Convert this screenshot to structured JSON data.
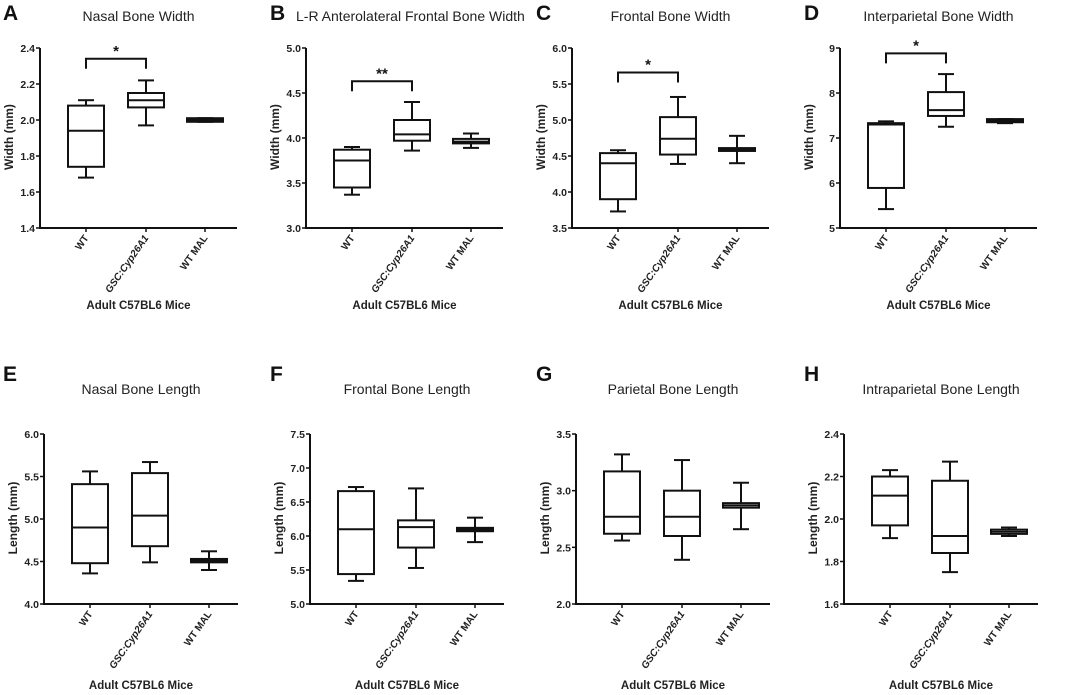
{
  "chart_data": [
    {
      "letter": "A",
      "type": "box",
      "title": "Nasal Bone Width",
      "ylabel": "Width (mm)",
      "xlabel": "Adult C57BL6 Mice",
      "ylim": [
        1.4,
        2.4
      ],
      "yticks": [
        1.4,
        1.6,
        1.8,
        2.0,
        2.2,
        2.4
      ],
      "ytick_labels": [
        "1.4",
        "1.6",
        "1.8",
        "2.0",
        "2.2",
        "2.4"
      ],
      "categories": [
        "WT",
        "GSC:Cyp26A1",
        "WT MAL"
      ],
      "boxes": [
        {
          "min": 1.68,
          "q1": 1.74,
          "median": 1.94,
          "q3": 2.08,
          "max": 2.11
        },
        {
          "min": 1.97,
          "q1": 2.07,
          "median": 2.11,
          "q3": 2.15,
          "max": 2.22
        },
        {
          "min": 1.99,
          "q1": 1.99,
          "median": 2.0,
          "q3": 2.01,
          "max": 2.01
        }
      ],
      "significance": [
        {
          "from": 0,
          "to": 1,
          "label": "*",
          "y": 2.34
        }
      ]
    },
    {
      "letter": "B",
      "type": "box",
      "title": "L-R Anterolateral Frontal Bone Width",
      "ylabel": "Width (mm)",
      "xlabel": "Adult C57BL6 Mice",
      "ylim": [
        3.0,
        5.0
      ],
      "yticks": [
        3.0,
        3.5,
        4.0,
        4.5,
        5.0
      ],
      "ytick_labels": [
        "3.0",
        "3.5",
        "4.0",
        "4.5",
        "5.0"
      ],
      "categories": [
        "WT",
        "GSC:Cyp26A1",
        "WT MAL"
      ],
      "boxes": [
        {
          "min": 3.37,
          "q1": 3.45,
          "median": 3.75,
          "q3": 3.87,
          "max": 3.9
        },
        {
          "min": 3.86,
          "q1": 3.97,
          "median": 4.04,
          "q3": 4.2,
          "max": 4.4
        },
        {
          "min": 3.89,
          "q1": 3.94,
          "median": 3.96,
          "q3": 3.99,
          "max": 4.05
        }
      ],
      "significance": [
        {
          "from": 0,
          "to": 1,
          "label": "**",
          "y": 4.63
        }
      ]
    },
    {
      "letter": "C",
      "type": "box",
      "title": "Frontal Bone Width",
      "ylabel": "Width (mm)",
      "xlabel": "Adult C57BL6 Mice",
      "ylim": [
        3.5,
        6.0
      ],
      "yticks": [
        3.5,
        4.0,
        4.5,
        5.0,
        5.5,
        6.0
      ],
      "ytick_labels": [
        "3.5",
        "4.0",
        "4.5",
        "5.0",
        "5.5",
        "6.0"
      ],
      "categories": [
        "WT",
        "GSC:Cyp26A1",
        "WT MAL"
      ],
      "boxes": [
        {
          "min": 3.73,
          "q1": 3.9,
          "median": 4.4,
          "q3": 4.54,
          "max": 4.58
        },
        {
          "min": 4.39,
          "q1": 4.52,
          "median": 4.74,
          "q3": 5.04,
          "max": 5.32
        },
        {
          "min": 4.4,
          "q1": 4.57,
          "median": 4.59,
          "q3": 4.61,
          "max": 4.78
        }
      ],
      "significance": [
        {
          "from": 0,
          "to": 1,
          "label": "*",
          "y": 5.66
        }
      ]
    },
    {
      "letter": "D",
      "type": "box",
      "title": "Interparietal Bone Width",
      "ylabel": "Width (mm)",
      "xlabel": "Adult C57BL6 Mice",
      "ylim": [
        5,
        9
      ],
      "yticks": [
        5,
        6,
        7,
        8,
        9
      ],
      "ytick_labels": [
        "5",
        "6",
        "7",
        "8",
        "9"
      ],
      "categories": [
        "WT",
        "GSC:Cyp26A1",
        "WT MAL"
      ],
      "boxes": [
        {
          "min": 5.42,
          "q1": 5.89,
          "median": 7.3,
          "q3": 7.33,
          "max": 7.37
        },
        {
          "min": 7.25,
          "q1": 7.49,
          "median": 7.62,
          "q3": 8.02,
          "max": 8.42
        },
        {
          "min": 7.33,
          "q1": 7.35,
          "median": 7.38,
          "q3": 7.42,
          "max": 7.42
        }
      ],
      "significance": [
        {
          "from": 0,
          "to": 1,
          "label": "*",
          "y": 8.88
        }
      ]
    },
    {
      "letter": "E",
      "type": "box",
      "title": "Nasal Bone Length",
      "ylabel": "Length (mm)",
      "xlabel": "Adult C57BL6 Mice",
      "ylim": [
        4.0,
        6.0
      ],
      "yticks": [
        4.0,
        4.5,
        5.0,
        5.5,
        6.0
      ],
      "ytick_labels": [
        "4.0",
        "4.5",
        "5.0",
        "5.5",
        "6.0"
      ],
      "categories": [
        "WT",
        "GSC:Cyp26A1",
        "WT MAL"
      ],
      "boxes": [
        {
          "min": 4.36,
          "q1": 4.48,
          "median": 4.9,
          "q3": 5.41,
          "max": 5.56
        },
        {
          "min": 4.49,
          "q1": 4.68,
          "median": 5.04,
          "q3": 5.54,
          "max": 5.67
        },
        {
          "min": 4.4,
          "q1": 4.49,
          "median": 4.51,
          "q3": 4.53,
          "max": 4.62
        }
      ],
      "significance": []
    },
    {
      "letter": "F",
      "type": "box",
      "title": "Frontal Bone Length",
      "ylabel": "Length (mm)",
      "xlabel": "Adult C57BL6 Mice",
      "ylim": [
        5.0,
        7.5
      ],
      "yticks": [
        5.0,
        5.5,
        6.0,
        6.5,
        7.0,
        7.5
      ],
      "ytick_labels": [
        "5.0",
        "5.5",
        "6.0",
        "6.5",
        "7.0",
        "7.5"
      ],
      "categories": [
        "WT",
        "GSC:Cyp26A1",
        "WT MAL"
      ],
      "boxes": [
        {
          "min": 5.34,
          "q1": 5.44,
          "median": 6.1,
          "q3": 6.66,
          "max": 6.72
        },
        {
          "min": 5.53,
          "q1": 5.83,
          "median": 6.13,
          "q3": 6.23,
          "max": 6.7
        },
        {
          "min": 5.91,
          "q1": 6.07,
          "median": 6.09,
          "q3": 6.12,
          "max": 6.27
        }
      ],
      "significance": []
    },
    {
      "letter": "G",
      "type": "box",
      "title": "Parietal Bone Length",
      "ylabel": "Length (mm)",
      "xlabel": "Adult C57BL6 Mice",
      "ylim": [
        2.0,
        3.5
      ],
      "yticks": [
        2.0,
        2.5,
        3.0,
        3.5
      ],
      "ytick_labels": [
        "2.0",
        "2.5",
        "3.0",
        "3.5"
      ],
      "categories": [
        "WT",
        "GSC:Cyp26A1",
        "WT MAL"
      ],
      "boxes": [
        {
          "min": 2.56,
          "q1": 2.62,
          "median": 2.77,
          "q3": 3.17,
          "max": 3.32
        },
        {
          "min": 2.39,
          "q1": 2.6,
          "median": 2.77,
          "q3": 3.0,
          "max": 3.27
        },
        {
          "min": 2.66,
          "q1": 2.85,
          "median": 2.87,
          "q3": 2.89,
          "max": 3.07
        }
      ],
      "significance": []
    },
    {
      "letter": "H",
      "type": "box",
      "title": "Intraparietal Bone Length",
      "ylabel": "Length (mm)",
      "xlabel": "Adult C57BL6 Mice",
      "ylim": [
        1.6,
        2.4
      ],
      "yticks": [
        1.6,
        1.8,
        2.0,
        2.2,
        2.4
      ],
      "ytick_labels": [
        "1.6",
        "1.8",
        "2.0",
        "2.2",
        "2.4"
      ],
      "categories": [
        "WT",
        "GSC:Cyp26A1",
        "WT MAL"
      ],
      "boxes": [
        {
          "min": 1.91,
          "q1": 1.97,
          "median": 2.11,
          "q3": 2.2,
          "max": 2.23
        },
        {
          "min": 1.75,
          "q1": 1.84,
          "median": 1.92,
          "q3": 2.18,
          "max": 2.27
        },
        {
          "min": 1.92,
          "q1": 1.93,
          "median": 1.94,
          "q3": 1.95,
          "max": 1.96
        }
      ],
      "significance": []
    }
  ]
}
